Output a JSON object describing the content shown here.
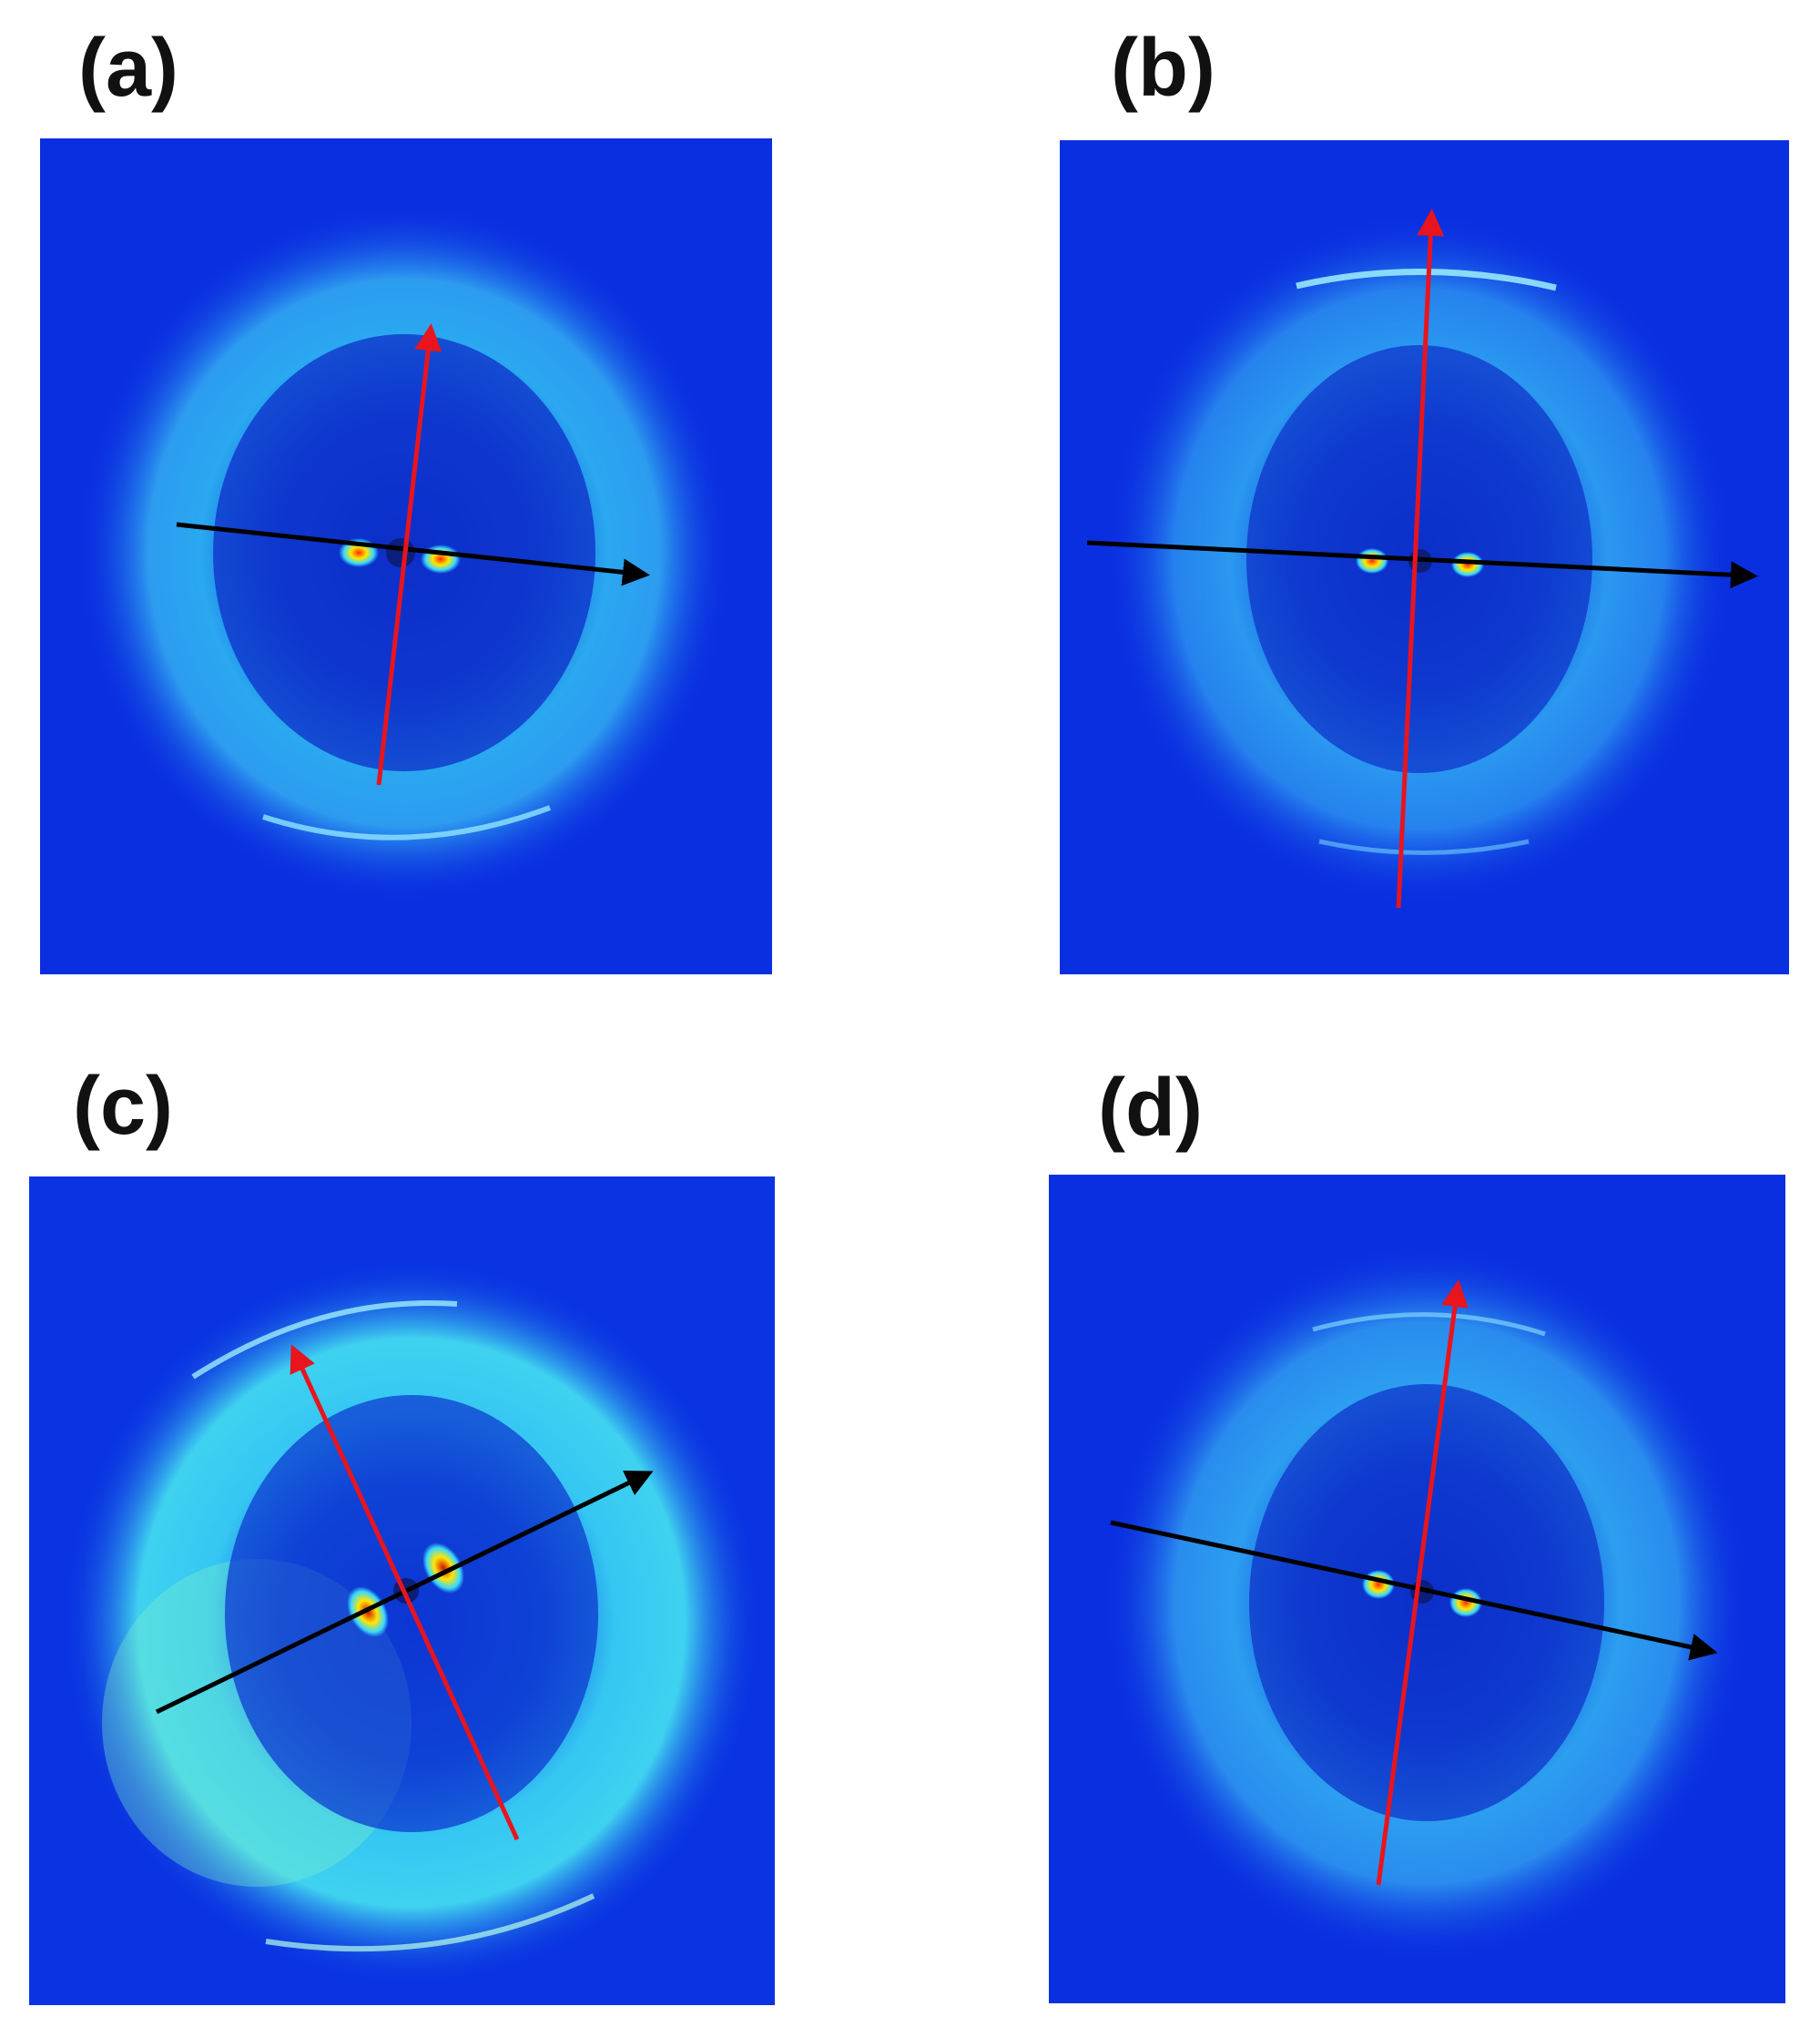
{
  "panels": [
    {
      "label": "(a)",
      "name": "a"
    },
    {
      "label": "(b)",
      "name": "b"
    },
    {
      "label": "(c)",
      "name": "c"
    },
    {
      "label": "(d)",
      "name": "d"
    }
  ],
  "colors": {
    "background": "#0a2fe0",
    "halo": "#37c3f5",
    "beam_stop": "#0b1e7a",
    "peak_hot": "#ff2a00",
    "peak_warm": "#ffe600",
    "arrow_red": "#e8141e",
    "arrow_black": "#000000"
  }
}
